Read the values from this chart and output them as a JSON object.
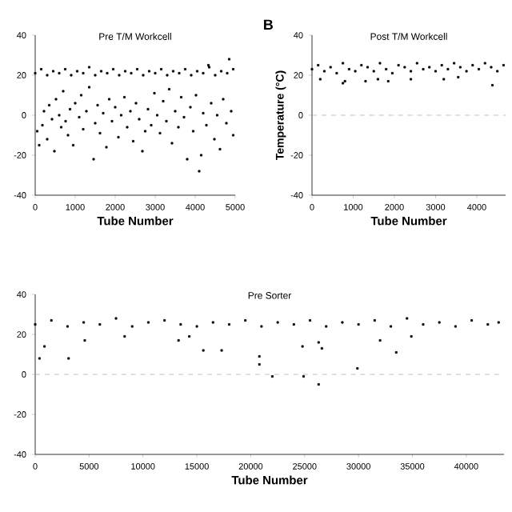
{
  "chart_data": [
    {
      "type": "scatter",
      "title": "Pre T/M Workcell",
      "xlabel": "Tube Number",
      "xlim": [
        0,
        5000
      ],
      "xticks": [
        0,
        1000,
        2000,
        3000,
        4000,
        5000
      ],
      "ylim": [
        -40,
        40
      ],
      "yticks": [
        -40,
        -20,
        0,
        20,
        40
      ],
      "marker": "square",
      "series": [
        {
          "color": "#000000",
          "x": [
            0,
            150,
            300,
            450,
            600,
            750,
            900,
            1050,
            1200,
            1350,
            1500,
            1650,
            1800,
            1950,
            2100,
            2250,
            2400,
            2550,
            2700,
            2850,
            3000,
            3150,
            3300,
            3450,
            3600,
            3750,
            3900,
            4050,
            4200,
            4350,
            4500,
            4650,
            4800,
            4950,
            50,
            100,
            180,
            220,
            300,
            350,
            420,
            480,
            520,
            600,
            650,
            700,
            760,
            820,
            870,
            950,
            1000,
            1100,
            1150,
            1200,
            1280,
            1350,
            1460,
            1500,
            1560,
            1620,
            1700,
            1780,
            1850,
            1920,
            2000,
            2080,
            2150,
            2230,
            2300,
            2380,
            2450,
            2520,
            2600,
            2680,
            2750,
            2820,
            2900,
            2980,
            3050,
            3120,
            3200,
            3280,
            3350,
            3420,
            3500,
            3580,
            3650,
            3720,
            3800,
            3880,
            3950,
            4020,
            4100,
            4150,
            4200,
            4280,
            4330,
            4400,
            4480,
            4550,
            4620,
            4700,
            4780,
            4850,
            4900,
            4950
          ],
          "values": [
            21,
            23,
            20,
            22,
            21,
            23,
            20,
            22,
            21,
            24,
            20,
            22,
            21,
            23,
            20,
            22,
            21,
            23,
            20,
            22,
            21,
            23,
            20,
            22,
            21,
            23,
            20,
            22,
            21,
            24,
            20,
            22,
            21,
            23,
            -8,
            -15,
            -5,
            2,
            -12,
            5,
            -2,
            -18,
            8,
            0,
            -6,
            12,
            -3,
            -10,
            3,
            -15,
            6,
            -1,
            10,
            -7,
            2,
            14,
            -22,
            -4,
            5,
            -9,
            1,
            -16,
            8,
            -3,
            4,
            -11,
            0,
            9,
            -6,
            2,
            -13,
            6,
            -2,
            -18,
            -8,
            3,
            -5,
            11,
            0,
            -9,
            7,
            -3,
            13,
            -14,
            2,
            -6,
            9,
            -1,
            -22,
            4,
            -8,
            10,
            -28,
            -20,
            1,
            -5,
            25,
            6,
            -12,
            0,
            -17,
            8,
            -4,
            28,
            2,
            -10
          ]
        }
      ]
    },
    {
      "type": "scatter",
      "title": "Post T/M Workcell",
      "xlabel": "Tube Number",
      "ylabel": "Temperature (°C)",
      "annotations": [
        "B"
      ],
      "xlim": [
        0,
        4700
      ],
      "xticks": [
        0,
        1000,
        2000,
        3000,
        4000
      ],
      "ylim": [
        -40,
        40
      ],
      "yticks": [
        -40,
        -20,
        0,
        20,
        40
      ],
      "marker": "square",
      "ref_lines": [
        {
          "axis": "y",
          "value": 0,
          "color": "#b0b0b0",
          "line_style": "dashed"
        }
      ],
      "series": [
        {
          "color": "#000000",
          "x": [
            0,
            150,
            300,
            450,
            600,
            750,
            900,
            1050,
            1200,
            1350,
            1500,
            1650,
            1800,
            1950,
            2100,
            2250,
            2400,
            2550,
            2700,
            2850,
            3000,
            3150,
            3300,
            3450,
            3600,
            3750,
            3900,
            4050,
            4200,
            4350,
            4500,
            4650,
            200,
            750,
            800,
            1300,
            1600,
            1850,
            2400,
            3200,
            3550,
            4380
          ],
          "values": [
            23,
            25,
            22,
            24,
            21,
            26,
            23,
            22,
            25,
            24,
            22,
            26,
            23,
            21,
            25,
            24,
            22,
            26,
            23,
            24,
            22,
            25,
            23,
            26,
            24,
            22,
            25,
            23,
            26,
            24,
            22,
            25,
            18,
            16,
            17,
            17,
            18,
            17,
            18,
            18,
            19,
            15
          ]
        }
      ]
    },
    {
      "type": "scatter",
      "title": "Pre Sorter",
      "xlabel": "Tube Number",
      "xlim": [
        0,
        43500
      ],
      "xticks": [
        0,
        5000,
        10000,
        15000,
        20000,
        25000,
        30000,
        35000,
        40000
      ],
      "ylim": [
        -40,
        40
      ],
      "yticks": [
        -40,
        -20,
        0,
        20,
        40
      ],
      "marker": "square",
      "ref_lines": [
        {
          "axis": "y",
          "value": 0,
          "color": "#b0b0b0",
          "line_style": "dashed"
        }
      ],
      "series": [
        {
          "color": "#000000",
          "x": [
            0,
            1500,
            3000,
            4500,
            6000,
            7500,
            9000,
            10500,
            12000,
            13500,
            15000,
            16500,
            18000,
            19500,
            21000,
            22500,
            24000,
            25500,
            27000,
            28500,
            30000,
            31500,
            33000,
            34500,
            36000,
            37500,
            39000,
            40500,
            42000,
            43000,
            400,
            860,
            3100,
            4600,
            8300,
            13300,
            14300,
            15600,
            17300,
            20800,
            20800,
            22000,
            24800,
            24900,
            26300,
            26600,
            26300,
            29900,
            32000,
            33500,
            34900
          ],
          "values": [
            25,
            27,
            24,
            26,
            25,
            28,
            24,
            26,
            27,
            25,
            24,
            26,
            25,
            27,
            24,
            26,
            25,
            27,
            24,
            26,
            25,
            27,
            24,
            28,
            25,
            26,
            24,
            27,
            25,
            26,
            8,
            14,
            8,
            17,
            19,
            17,
            19,
            12,
            12,
            9,
            5,
            -1,
            14,
            -1,
            16,
            13,
            -5,
            3,
            17,
            11,
            19
          ]
        }
      ]
    }
  ]
}
